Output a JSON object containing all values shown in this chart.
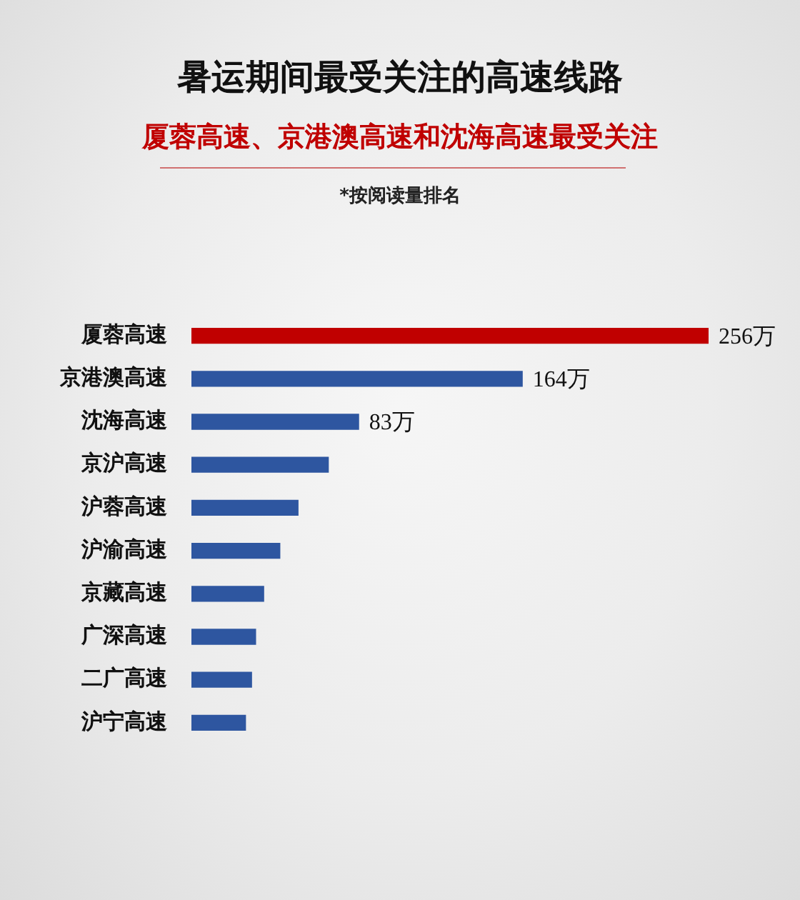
{
  "chart_data": {
    "type": "bar",
    "orientation": "horizontal",
    "title": "暑运期间最受关注的高速线路",
    "subtitle": "厦蓉高速、京港澳高速和沈海高速最受关注",
    "annotations": [
      "*按阅读量排名"
    ],
    "categories": [
      "厦蓉高速",
      "京港澳高速",
      "沈海高速",
      "京沪高速",
      "沪蓉高速",
      "沪渝高速",
      "京藏高速",
      "广深高速",
      "二广高速",
      "沪宁高速"
    ],
    "values": [
      256,
      164,
      83,
      68,
      53,
      44,
      36,
      32,
      30,
      27
    ],
    "colors": [
      "#c00000",
      "#2e56a0",
      "#2e56a0",
      "#2e56a0",
      "#2e56a0",
      "#2e56a0",
      "#2e56a0",
      "#2e56a0",
      "#2e56a0",
      "#2e56a0"
    ],
    "value_labels": [
      "256万",
      "164万",
      "83万",
      null,
      null,
      null,
      null,
      null,
      null,
      null
    ]
  }
}
